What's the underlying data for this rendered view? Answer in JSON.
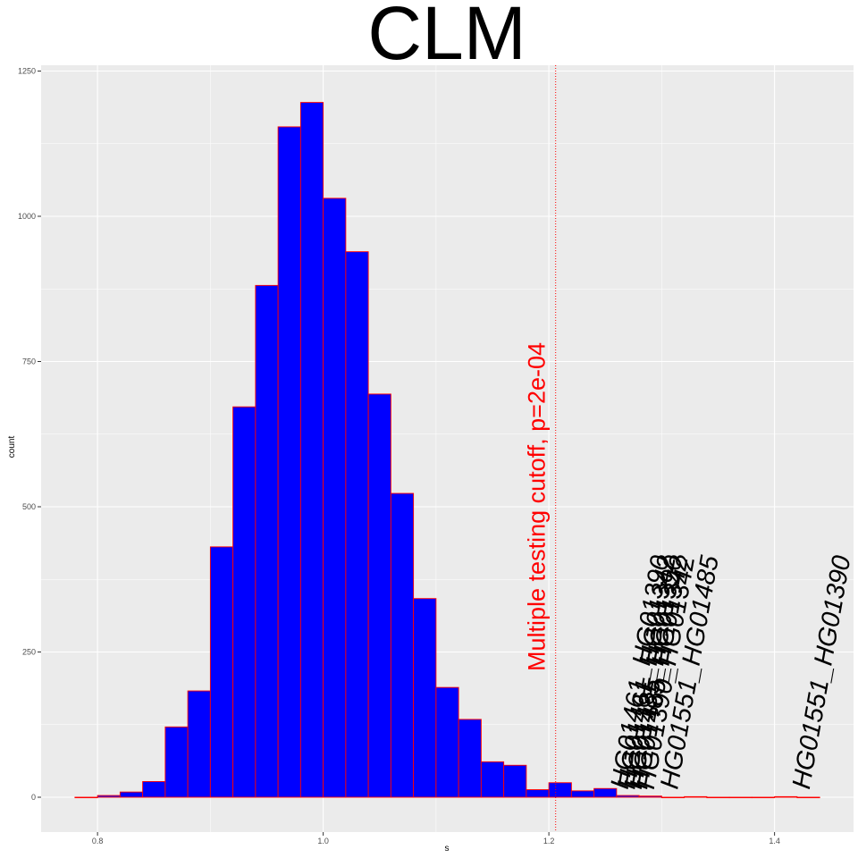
{
  "chart_data": {
    "type": "bar",
    "title": "CLM",
    "xlabel": "s",
    "ylabel": "count",
    "xlim": [
      0.75,
      1.47
    ],
    "ylim": [
      -60,
      1260
    ],
    "xticks": [
      0.8,
      1.0,
      1.2,
      1.4
    ],
    "xtick_labels": [
      "0.8",
      "1.0",
      "1.2",
      "1.4"
    ],
    "yticks": [
      0,
      250,
      500,
      750,
      1000,
      1250
    ],
    "ytick_labels": [
      "0",
      "250",
      "500",
      "750",
      "1000",
      "1250"
    ],
    "bin_width": 0.02,
    "bin_centers": [
      0.79,
      0.81,
      0.83,
      0.85,
      0.87,
      0.89,
      0.91,
      0.93,
      0.95,
      0.97,
      0.99,
      1.01,
      1.03,
      1.05,
      1.07,
      1.09,
      1.11,
      1.13,
      1.15,
      1.17,
      1.19,
      1.21,
      1.23,
      1.25,
      1.27,
      1.29,
      1.31,
      1.33,
      1.35,
      1.37,
      1.39,
      1.41,
      1.43
    ],
    "counts": [
      0,
      3,
      9,
      27,
      121,
      183,
      431,
      672,
      881,
      1154,
      1196,
      1031,
      939,
      694,
      523,
      342,
      189,
      134,
      61,
      55,
      13,
      25,
      11,
      15,
      3,
      2,
      0,
      1,
      0,
      0,
      0,
      1,
      0
    ],
    "cutoff": {
      "x": 1.206,
      "label": "Multiple testing cutoff, p=2e-04",
      "color": "#ff0000"
    },
    "annotations": [
      {
        "x": 1.262,
        "text": "HG01461_HG01390"
      },
      {
        "x": 1.268,
        "text": "HG01461_HG01342"
      },
      {
        "x": 1.274,
        "text": "HG01485_HG01390"
      },
      {
        "x": 1.279,
        "text": "HG01485_HG01342"
      },
      {
        "x": 1.285,
        "text": "HG01390_HG01342"
      },
      {
        "x": 1.306,
        "text": "HG01551_HG01485"
      },
      {
        "x": 1.423,
        "text": "HG01551_HG01390"
      }
    ],
    "bar_fill": "#0000ff",
    "bar_outline": "#ff0000",
    "panel_background": "#ebebeb",
    "grid": true,
    "legend": "none"
  }
}
